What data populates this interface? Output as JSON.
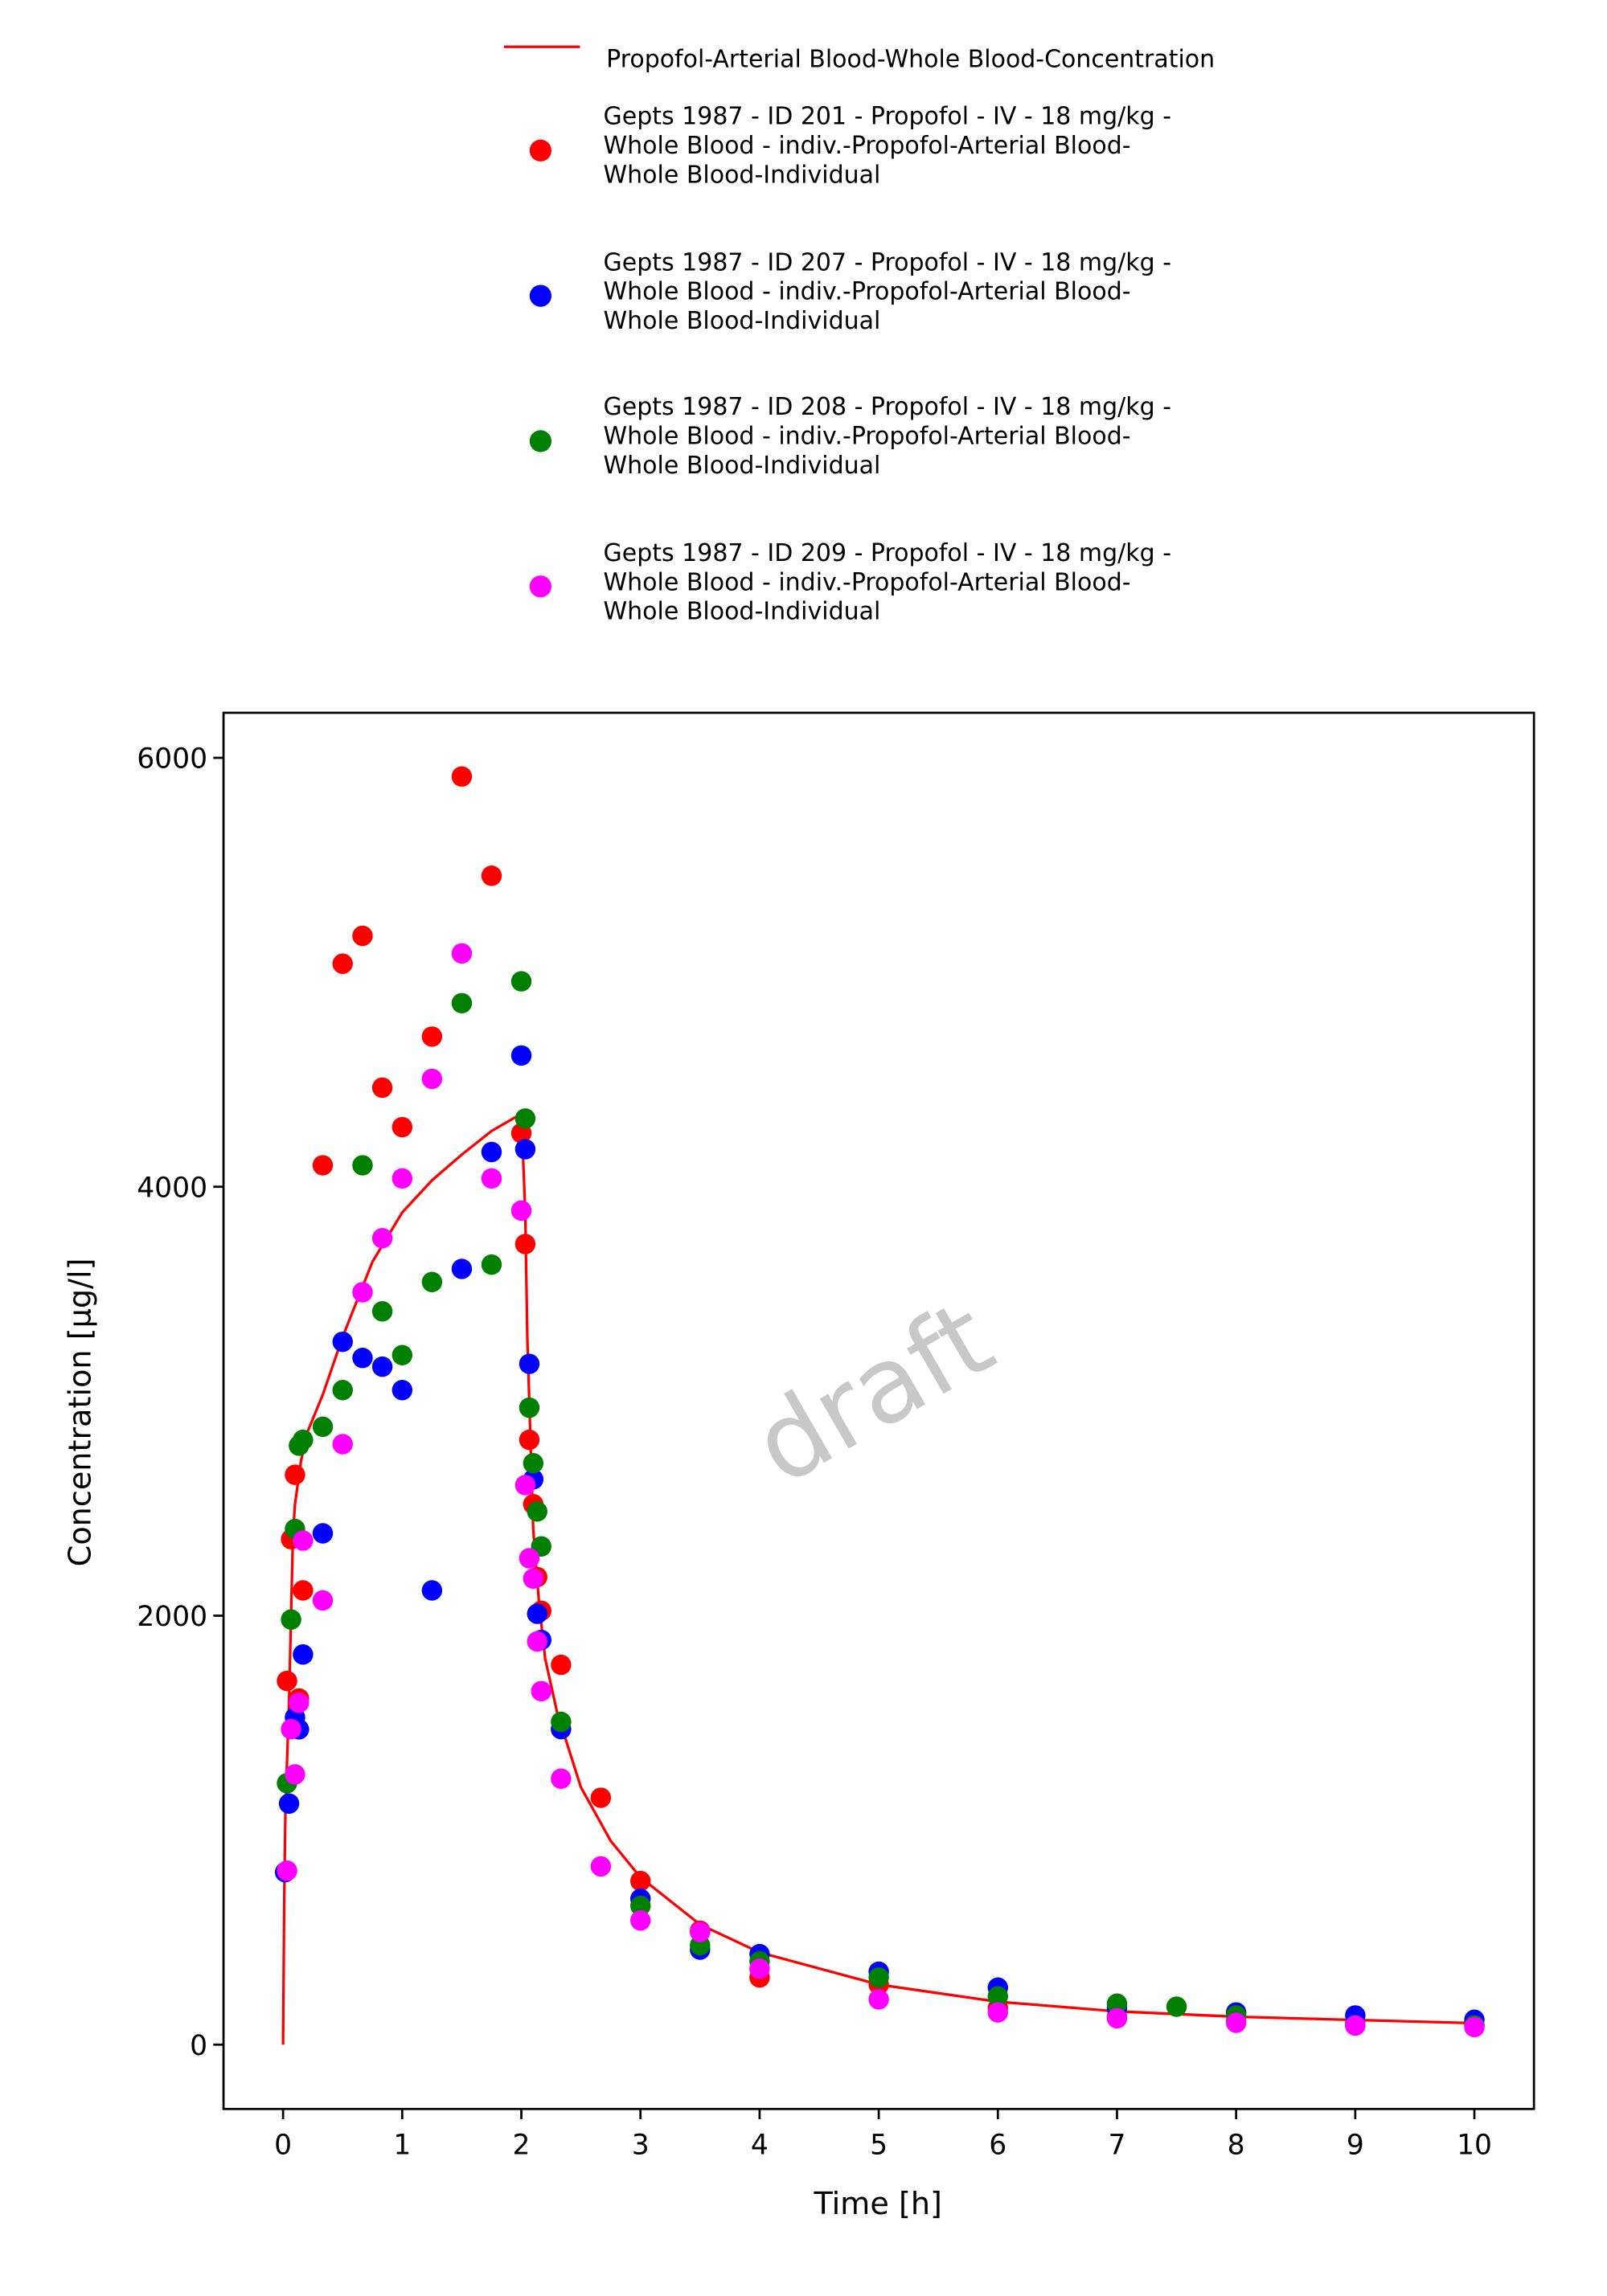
{
  "chart_data": {
    "type": "scatter",
    "xlabel": "Time [h]",
    "ylabel": "Concentration [µg/l]",
    "watermark": "draft",
    "xlim": [
      -0.5,
      10.5
    ],
    "ylim": [
      -300,
      6210
    ],
    "xticks": [
      0,
      1,
      2,
      3,
      4,
      5,
      6,
      7,
      8,
      9,
      10
    ],
    "yticks": [
      0,
      2000,
      4000,
      6000
    ],
    "grid": false,
    "legend": "top",
    "line": {
      "name": "Propofol-Arterial Blood-Whole Blood-Concentration",
      "color": "#ff0000",
      "x": [
        0,
        0.01,
        0.02,
        0.05,
        0.083,
        0.1,
        0.15,
        0.2,
        0.333,
        0.5,
        0.75,
        1,
        1.25,
        1.5,
        1.75,
        2,
        2.033,
        2.05,
        2.1,
        2.15,
        2.2,
        2.3,
        2.5,
        2.75,
        3,
        3.5,
        4,
        5,
        6,
        7,
        8,
        9,
        10
      ],
      "values": [
        0,
        700,
        1100,
        1600,
        2380,
        2520,
        2720,
        2850,
        3030,
        3300,
        3650,
        3880,
        4030,
        4150,
        4260,
        4340,
        3880,
        3300,
        2400,
        2050,
        1800,
        1550,
        1200,
        950,
        780,
        560,
        430,
        280,
        200,
        155,
        130,
        115,
        100
      ]
    },
    "series": [
      {
        "name": "Gepts 1987 - ID 201 - Propofol - IV - 18 mg/kg - Whole Blood - indiv.-Propofol-Arterial Blood-Whole Blood-Individual",
        "color": "#ff0000",
        "x": [
          0.033,
          0.067,
          0.1,
          0.133,
          0.167,
          0.333,
          0.5,
          0.667,
          0.833,
          1,
          1.25,
          1.5,
          1.75,
          2,
          2.033,
          2.067,
          2.1,
          2.133,
          2.167,
          2.333,
          2.667,
          3,
          3.5,
          4,
          5,
          6,
          7,
          8,
          9,
          10
        ],
        "values": [
          1696,
          2357,
          2657,
          1614,
          2118,
          4100,
          5040,
          5170,
          4462,
          4278,
          4700,
          5913,
          5450,
          4250,
          3733,
          2820,
          2520,
          2180,
          2023,
          1771,
          1151,
          763,
          531,
          313,
          280,
          170,
          130,
          110,
          100,
          90
        ]
      },
      {
        "name": "Gepts 1987 - ID 207 - Propofol - IV - 18 mg/kg - Whole Blood - indiv.-Propofol-Arterial Blood-Whole Blood-Individual",
        "color": "#0000ff",
        "x": [
          0.017,
          0.05,
          0.1,
          0.133,
          0.167,
          0.333,
          0.5,
          0.667,
          0.833,
          1,
          1.25,
          1.5,
          1.75,
          2,
          2.033,
          2.067,
          2.1,
          2.133,
          2.167,
          2.333,
          3,
          3.5,
          4,
          5,
          6,
          7,
          8,
          9,
          10
        ],
        "values": [
          804,
          1124,
          1526,
          1470,
          1819,
          2384,
          3277,
          3202,
          3161,
          3052,
          2118,
          3617,
          4162,
          4612,
          4175,
          3174,
          2636,
          2009,
          1887,
          1471,
          680,
          443,
          422,
          340,
          266,
          170,
          150,
          136,
          116
        ]
      },
      {
        "name": "Gepts 1987 - ID 208 - Propofol - IV - 18 mg/kg - Whole Blood - indiv.-Propofol-Arterial Blood-Whole Blood-Individual",
        "color": "#008000",
        "x": [
          0.033,
          0.067,
          0.1,
          0.133,
          0.167,
          0.333,
          0.5,
          0.667,
          0.833,
          1,
          1.25,
          1.5,
          1.75,
          2,
          2.033,
          2.067,
          2.1,
          2.133,
          2.167,
          2.333,
          3,
          3.5,
          4,
          5,
          6,
          7,
          7.5,
          8,
          9,
          10
        ],
        "values": [
          1219,
          1982,
          2404,
          2793,
          2820,
          2881,
          3052,
          4100,
          3419,
          3215,
          3556,
          4856,
          3637,
          4958,
          4318,
          2970,
          2711,
          2486,
          2323,
          1505,
          647,
          463,
          388,
          313,
          225,
          191,
          177,
          136,
          90,
          90
        ]
      },
      {
        "name": "Gepts 1987 - ID 209 - Propofol - IV - 18 mg/kg - Whole Blood - indiv.-Propofol-Arterial Blood-Whole Blood-Individual",
        "color": "#ff00ff",
        "x": [
          0.033,
          0.067,
          0.1,
          0.133,
          0.167,
          0.333,
          0.5,
          0.667,
          0.833,
          1,
          1.25,
          1.5,
          1.75,
          2,
          2.033,
          2.067,
          2.1,
          2.133,
          2.167,
          2.333,
          2.667,
          3,
          3.5,
          4,
          5,
          6,
          7,
          8,
          9,
          10
        ],
        "values": [
          811,
          1471,
          1260,
          1594,
          2350,
          2071,
          2800,
          3508,
          3760,
          4039,
          4503,
          5088,
          4039,
          3889,
          2609,
          2268,
          2173,
          1880,
          1648,
          1240,
          831,
          579,
          525,
          354,
          211,
          150,
          123,
          102,
          89,
          82
        ]
      }
    ]
  }
}
